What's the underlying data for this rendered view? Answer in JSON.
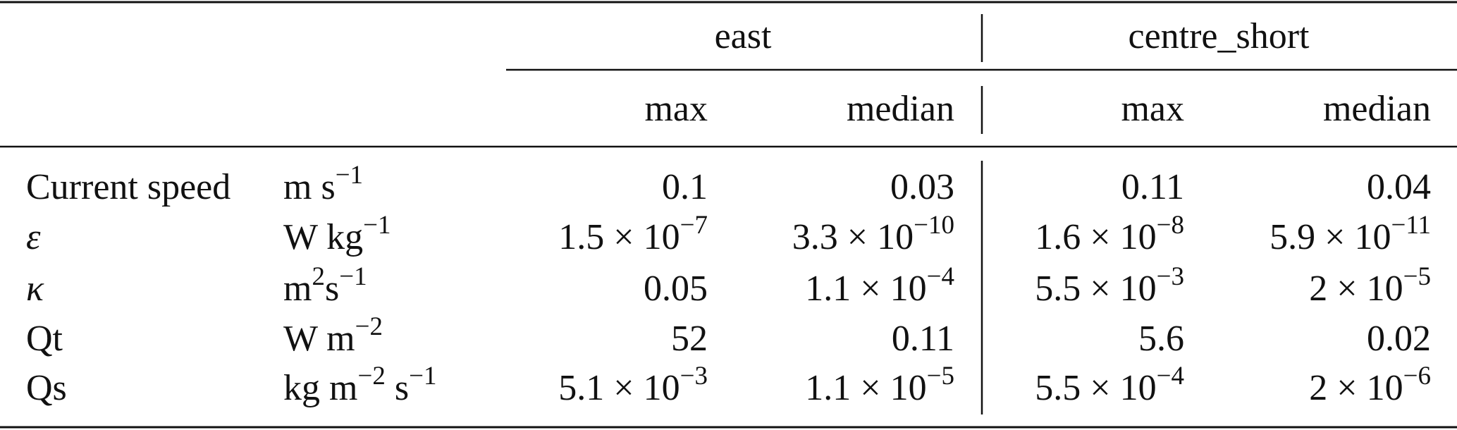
{
  "header": {
    "groups": [
      "east",
      "centre_short"
    ],
    "columns": [
      "max",
      "median",
      "max",
      "median"
    ]
  },
  "rows": [
    {
      "label": "Current speed",
      "unit": [
        {
          "text": "m s",
          "sup": "−1"
        }
      ],
      "values": [
        {
          "text": "0.1"
        },
        {
          "text": "0.03"
        },
        {
          "text": "0.11"
        },
        {
          "text": "0.04"
        }
      ]
    },
    {
      "label": "ε",
      "italic": true,
      "unit": [
        {
          "text": "W kg",
          "sup": "−1"
        }
      ],
      "values": [
        {
          "text": "1.5 × 10",
          "sup": "−7"
        },
        {
          "text": "3.3 × 10",
          "sup": "−10"
        },
        {
          "text": "1.6 × 10",
          "sup": "−8"
        },
        {
          "text": "5.9 × 10",
          "sup": "−11"
        }
      ]
    },
    {
      "label": "κ",
      "italic": true,
      "unit": [
        {
          "text": "m",
          "sup": "2"
        },
        {
          "text": "s",
          "sup": "−1"
        }
      ],
      "values": [
        {
          "text": "0.05"
        },
        {
          "text": "1.1 × 10",
          "sup": "−4"
        },
        {
          "text": "5.5 × 10",
          "sup": "−3"
        },
        {
          "text": "2 × 10",
          "sup": "−5"
        }
      ]
    },
    {
      "label": "Qt",
      "unit": [
        {
          "text": "W m",
          "sup": "−2"
        }
      ],
      "values": [
        {
          "text": "52"
        },
        {
          "text": "0.11"
        },
        {
          "text": "5.6"
        },
        {
          "text": "0.02"
        }
      ]
    },
    {
      "label": "Qs",
      "unit": [
        {
          "text": "kg m",
          "sup": "−2"
        },
        {
          "text": " s",
          "sup": "−1"
        }
      ],
      "values": [
        {
          "text": "5.1 × 10",
          "sup": "−3"
        },
        {
          "text": "1.1 × 10",
          "sup": "−5"
        },
        {
          "text": "5.5 × 10",
          "sup": "−4"
        },
        {
          "text": "2 × 10",
          "sup": "−6"
        }
      ]
    }
  ]
}
